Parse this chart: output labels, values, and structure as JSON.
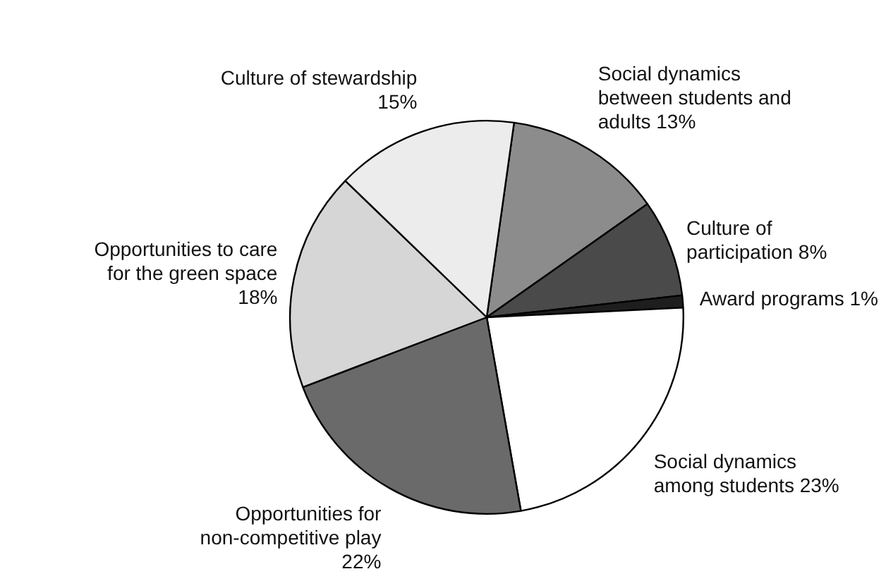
{
  "chart_data": {
    "type": "pie",
    "categories": [
      "Social dynamics between students and adults",
      "Culture of participation",
      "Award programs",
      "Social dynamics among students",
      "Opportunities for non-competitive play",
      "Opportunities to care for the green space",
      "Culture of stewardship"
    ],
    "values": [
      13,
      8,
      1,
      23,
      22,
      18,
      15
    ],
    "colors": [
      "#8c8c8c",
      "#4a4a4a",
      "#1e1e1e",
      "#ffffff",
      "#6a6a6a",
      "#d6d6d6",
      "#ececec"
    ],
    "value_labels": [
      "13%",
      "8%",
      "1%",
      "23%",
      "22%",
      "18%",
      "15%"
    ],
    "legend": false
  }
}
